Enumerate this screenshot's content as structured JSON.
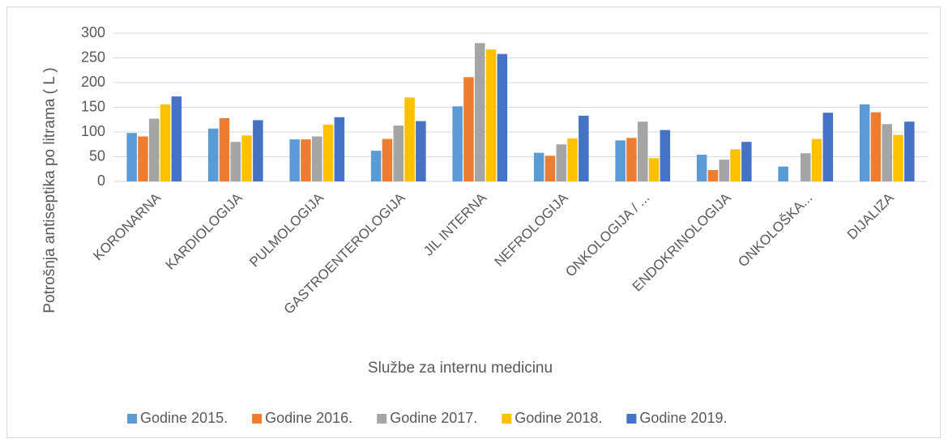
{
  "chart_data": {
    "type": "bar",
    "y_label": "Potrošnja antiseptika po litrama ( L )",
    "x_label": "Službe za internu medicinu",
    "categories": [
      "KORONARNA",
      "KARDIOLOGIJA",
      "PULMOLOGIJA",
      "GASTROENTEROLOGIJA",
      "JIL INTERNA",
      "NEFROLOGIJA",
      "ONKOLOGIJA / ...",
      "ENDOKRINOLOGIJA",
      "ONKOLOŠKA...",
      "DIJALIZA"
    ],
    "series": [
      {
        "name": "Godine 2015.",
        "color": "#5b9bd5",
        "values": [
          98,
          107,
          85,
          62,
          152,
          58,
          83,
          54,
          30,
          156
        ]
      },
      {
        "name": "Godine 2016.",
        "color": "#ed7d31",
        "values": [
          91,
          128,
          85,
          86,
          211,
          52,
          88,
          23,
          null,
          140
        ]
      },
      {
        "name": "Godine 2017.",
        "color": "#a5a5a5",
        "values": [
          127,
          80,
          91,
          113,
          280,
          75,
          121,
          44,
          57,
          116
        ]
      },
      {
        "name": "Godine 2018.",
        "color": "#ffc000",
        "values": [
          156,
          93,
          115,
          170,
          267,
          87,
          47,
          65,
          86,
          94
        ]
      },
      {
        "name": "Godine 2019.",
        "color": "#4472c4",
        "values": [
          172,
          124,
          130,
          122,
          258,
          133,
          104,
          80,
          139,
          121
        ]
      }
    ],
    "ylim": [
      0,
      300
    ],
    "yticks": [
      0,
      50,
      100,
      150,
      200,
      250,
      300
    ],
    "grid": true,
    "legend": "bottom"
  }
}
